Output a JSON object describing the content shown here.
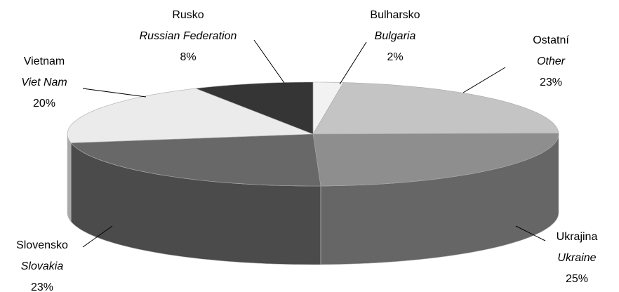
{
  "chart_data": {
    "type": "pie3d",
    "categories": [
      "Bulharsko",
      "Ostatní",
      "Ukrajina",
      "Slovensko",
      "Vietnam",
      "Rusko"
    ],
    "labels_en": [
      "Bulgaria",
      "Other",
      "Ukraine",
      "Slovakia",
      "Viet Nam",
      "Russian Federation"
    ],
    "values": [
      2,
      23,
      25,
      23,
      20,
      8
    ],
    "value_labels": [
      "2%",
      "23%",
      "25%",
      "23%",
      "20%",
      "8%"
    ],
    "colors": [
      "#f2f2f2",
      "#c4c4c4",
      "#8e8e8e",
      "#686868",
      "#ebebeb",
      "#353535"
    ]
  }
}
